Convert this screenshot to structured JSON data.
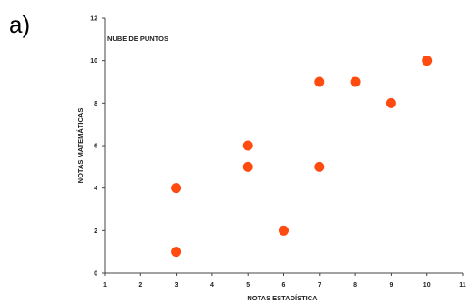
{
  "panel_label": "a)",
  "chart_data": {
    "type": "scatter",
    "title": "NUBE DE PUNTOS",
    "xlabel": "NOTAS ESTADÍSTICA",
    "ylabel": "NOTAS MATEMÁTICAS",
    "xlim": [
      1,
      11
    ],
    "ylim": [
      0,
      12
    ],
    "xticks": [
      1,
      2,
      3,
      4,
      5,
      6,
      7,
      8,
      9,
      10,
      11
    ],
    "yticks": [
      0,
      2,
      4,
      6,
      8,
      10,
      12
    ],
    "grid": false,
    "marker_color": "#ff4a10",
    "points": [
      {
        "x": 3,
        "y": 4
      },
      {
        "x": 3,
        "y": 1
      },
      {
        "x": 5,
        "y": 6
      },
      {
        "x": 5,
        "y": 5
      },
      {
        "x": 6,
        "y": 2
      },
      {
        "x": 7,
        "y": 9
      },
      {
        "x": 7,
        "y": 5
      },
      {
        "x": 8,
        "y": 9
      },
      {
        "x": 9,
        "y": 8
      },
      {
        "x": 10,
        "y": 10
      }
    ]
  }
}
